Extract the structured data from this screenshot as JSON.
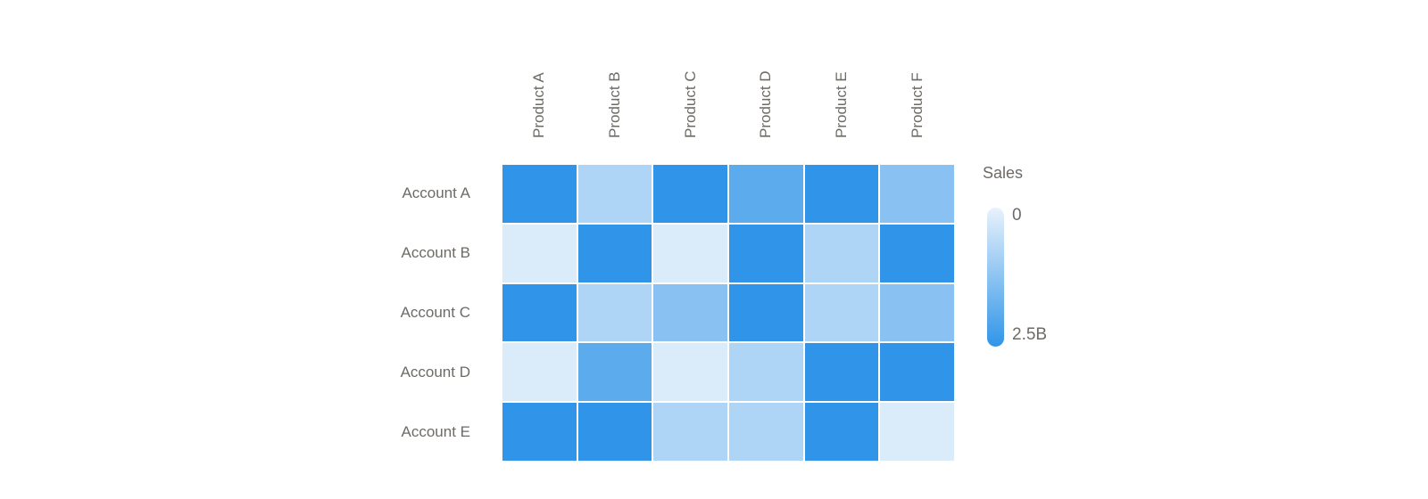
{
  "chart_data": {
    "type": "heatmap",
    "columns": [
      "Product A",
      "Product B",
      "Product C",
      "Product D",
      "Product E",
      "Product F"
    ],
    "rows": [
      "Account A",
      "Account B",
      "Account C",
      "Account D",
      "Account E"
    ],
    "values_billions": [
      [
        2.5,
        0.8,
        2.5,
        1.9,
        2.5,
        1.3
      ],
      [
        0.2,
        2.5,
        0.2,
        2.5,
        0.8,
        2.5
      ],
      [
        2.5,
        0.8,
        1.3,
        2.5,
        0.8,
        1.3
      ],
      [
        0.2,
        1.9,
        0.2,
        0.8,
        2.5,
        2.5
      ],
      [
        2.5,
        2.5,
        0.8,
        0.8,
        2.5,
        0.2
      ]
    ],
    "legend": {
      "title": "Sales",
      "min": 0,
      "max": 2.5,
      "min_label": "0",
      "max_label": "2.5B",
      "position": "right"
    },
    "colors": {
      "low": "#E9F2FC",
      "high": "#3095E8",
      "cell_gap": "#FFFFFF",
      "label_text": "#6E6B66"
    },
    "layout": {
      "column_labels_rotated": true,
      "gridlines": false,
      "background": "#FFFFFF"
    }
  }
}
